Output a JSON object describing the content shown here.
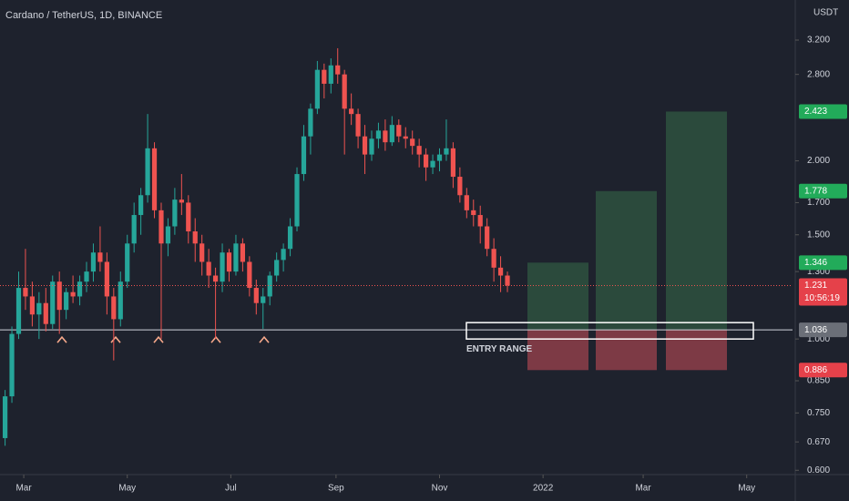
{
  "chart_data": {
    "type": "candlestick",
    "title": "Cardano / TetherUS, 1D, BINANCE",
    "unit": "USDT",
    "log_scale": true,
    "up_color": "#26a69a",
    "down_color": "#ef5350",
    "x": [
      3,
      7,
      11,
      15,
      19,
      23,
      27,
      31,
      35,
      39,
      43,
      47,
      51,
      55,
      59,
      63,
      67,
      71,
      75,
      79,
      83,
      87,
      91,
      95,
      99,
      103,
      107,
      111,
      115,
      119,
      123,
      127,
      131,
      135,
      139,
      143,
      147,
      151,
      155,
      159,
      163,
      167,
      171,
      175,
      179,
      183,
      187,
      191,
      195,
      199,
      203,
      207,
      211,
      215,
      219,
      223,
      227,
      231,
      235,
      239,
      243,
      247,
      251,
      255,
      259,
      263,
      267,
      271,
      275,
      279,
      283,
      287,
      291,
      295,
      299
    ],
    "open": [
      0.68,
      0.8,
      1.02,
      1.22,
      1.18,
      1.1,
      1.15,
      1.06,
      1.25,
      1.12,
      1.2,
      1.18,
      1.25,
      1.3,
      1.4,
      1.35,
      1.18,
      1.08,
      1.25,
      1.45,
      1.62,
      1.75,
      2.1,
      1.65,
      1.45,
      1.55,
      1.72,
      1.7,
      1.52,
      1.45,
      1.35,
      1.28,
      1.25,
      1.4,
      1.3,
      1.45,
      1.35,
      1.22,
      1.15,
      1.18,
      1.28,
      1.36,
      1.42,
      1.55,
      1.9,
      2.2,
      2.45,
      2.85,
      2.7,
      2.9,
      2.8,
      2.45,
      2.4,
      2.2,
      2.05,
      2.18,
      2.25,
      2.15,
      2.3,
      2.2,
      2.18,
      2.12,
      2.05,
      1.95,
      2.0,
      2.05,
      2.1,
      1.88,
      1.75,
      1.65,
      1.62,
      1.55,
      1.42,
      1.32,
      1.28
    ],
    "high": [
      0.82,
      1.05,
      1.3,
      1.42,
      1.25,
      1.2,
      1.22,
      1.28,
      1.3,
      1.22,
      1.28,
      1.28,
      1.35,
      1.45,
      1.55,
      1.4,
      1.22,
      1.3,
      1.5,
      1.7,
      1.8,
      2.4,
      2.15,
      1.7,
      1.6,
      1.8,
      1.9,
      1.75,
      1.6,
      1.5,
      1.42,
      1.32,
      1.45,
      1.42,
      1.5,
      1.48,
      1.38,
      1.26,
      1.22,
      1.3,
      1.4,
      1.45,
      1.6,
      1.95,
      2.3,
      2.5,
      2.95,
      2.92,
      2.98,
      3.1,
      2.85,
      2.6,
      2.45,
      2.3,
      2.25,
      2.32,
      2.35,
      2.38,
      2.35,
      2.28,
      2.25,
      2.18,
      2.1,
      2.05,
      2.1,
      2.35,
      2.15,
      1.95,
      1.8,
      1.72,
      1.68,
      1.6,
      1.48,
      1.38,
      1.3
    ],
    "low": [
      0.66,
      0.78,
      1.0,
      1.12,
      1.05,
      1.0,
      1.03,
      1.04,
      1.02,
      1.08,
      1.15,
      1.14,
      1.2,
      1.25,
      1.3,
      1.1,
      0.92,
      1.05,
      1.22,
      1.4,
      1.5,
      1.7,
      1.6,
      1.0,
      1.38,
      1.5,
      1.62,
      1.45,
      1.35,
      1.28,
      1.22,
      1.0,
      1.2,
      1.25,
      1.28,
      1.3,
      1.18,
      1.1,
      1.04,
      1.14,
      1.25,
      1.3,
      1.38,
      1.52,
      1.85,
      2.05,
      2.4,
      2.55,
      2.6,
      2.7,
      2.05,
      2.3,
      2.1,
      1.9,
      2.0,
      2.1,
      2.08,
      2.12,
      2.15,
      2.1,
      2.05,
      1.95,
      1.85,
      1.9,
      1.92,
      2.0,
      1.8,
      1.7,
      1.6,
      1.55,
      1.45,
      1.38,
      1.25,
      1.2,
      1.2
    ],
    "close": [
      0.8,
      1.02,
      1.22,
      1.18,
      1.1,
      1.15,
      1.06,
      1.25,
      1.12,
      1.2,
      1.18,
      1.25,
      1.3,
      1.4,
      1.35,
      1.18,
      1.08,
      1.25,
      1.45,
      1.62,
      1.75,
      2.1,
      1.65,
      1.45,
      1.55,
      1.72,
      1.7,
      1.52,
      1.45,
      1.35,
      1.28,
      1.25,
      1.4,
      1.3,
      1.45,
      1.35,
      1.22,
      1.15,
      1.18,
      1.28,
      1.36,
      1.42,
      1.55,
      1.9,
      2.2,
      2.45,
      2.85,
      2.7,
      2.9,
      2.8,
      2.45,
      2.4,
      2.2,
      2.05,
      2.18,
      2.25,
      2.15,
      2.3,
      2.2,
      2.18,
      2.12,
      2.05,
      1.95,
      2.0,
      2.05,
      2.1,
      1.88,
      1.75,
      1.65,
      1.62,
      1.55,
      1.42,
      1.32,
      1.28,
      1.231
    ],
    "countdown": "10:56:19",
    "entry": 1.036,
    "entry_label": "ENTRY RANGE",
    "stop": 0.886,
    "targets": [
      1.346,
      1.778,
      2.423
    ],
    "profit_color": "#2b4a3c",
    "loss_color": "#7d3a45",
    "xlim": [
      0,
      467
    ],
    "xticks": [
      {
        "value": 14,
        "label": "Mar"
      },
      {
        "value": 75,
        "label": "May"
      },
      {
        "value": 136,
        "label": "Jul"
      },
      {
        "value": 198,
        "label": "Sep"
      },
      {
        "value": 259,
        "label": "Nov"
      },
      {
        "value": 320,
        "label": "2022"
      },
      {
        "value": 379,
        "label": "Mar"
      },
      {
        "value": 440,
        "label": "May"
      }
    ],
    "ylim": [
      0.59,
      3.74
    ],
    "yticks": [
      {
        "value": 3.2,
        "label": "3.200"
      },
      {
        "value": 2.8,
        "label": "2.800"
      },
      {
        "value": 2.0,
        "label": "2.000"
      },
      {
        "value": 1.7,
        "label": "1.700"
      },
      {
        "value": 1.5,
        "label": "1.500"
      },
      {
        "value": 1.3,
        "label": "1.300"
      },
      {
        "value": 1.0,
        "label": "1.000"
      },
      {
        "value": 0.85,
        "label": "0.850"
      },
      {
        "value": 0.75,
        "label": "0.750"
      },
      {
        "value": 0.67,
        "label": "0.670"
      },
      {
        "value": 0.6,
        "label": "0.600"
      }
    ]
  }
}
